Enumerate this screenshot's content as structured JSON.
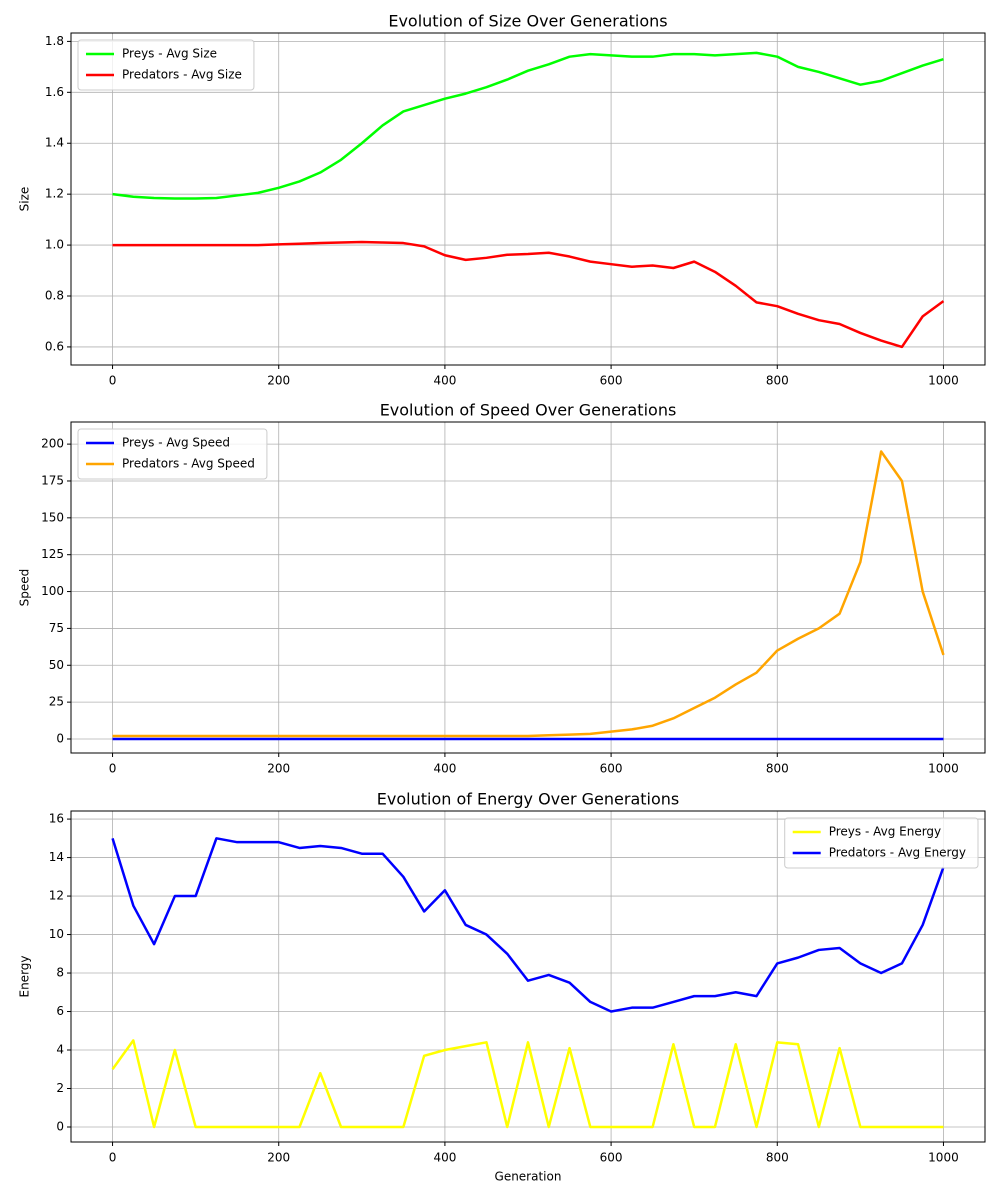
{
  "chart_data": [
    {
      "type": "line",
      "title": "Evolution of Size Over Generations",
      "ylabel": "Size",
      "x": [
        0,
        25,
        50,
        75,
        100,
        125,
        150,
        175,
        200,
        225,
        250,
        275,
        300,
        325,
        350,
        375,
        400,
        425,
        450,
        475,
        500,
        525,
        550,
        575,
        600,
        625,
        650,
        675,
        700,
        725,
        750,
        775,
        800,
        825,
        850,
        875,
        900,
        925,
        950,
        975,
        1000
      ],
      "series": [
        {
          "name": "Preys - Avg Size",
          "color": "#00ff00",
          "values": [
            1.2,
            1.19,
            1.185,
            1.183,
            1.183,
            1.185,
            1.195,
            1.205,
            1.225,
            1.25,
            1.285,
            1.335,
            1.4,
            1.47,
            1.525,
            1.55,
            1.575,
            1.595,
            1.62,
            1.65,
            1.685,
            1.71,
            1.74,
            1.75,
            1.745,
            1.74,
            1.74,
            1.75,
            1.75,
            1.745,
            1.75,
            1.755,
            1.74,
            1.7,
            1.68,
            1.655,
            1.63,
            1.645,
            1.675,
            1.705,
            1.73
          ]
        },
        {
          "name": "Predators - Avg Size",
          "color": "#ff0000",
          "values": [
            1.0,
            1.0,
            1.0,
            1.0,
            1.0,
            1.0,
            1.0,
            1.0,
            1.003,
            1.005,
            1.008,
            1.01,
            1.012,
            1.01,
            1.008,
            0.995,
            0.96,
            0.942,
            0.95,
            0.962,
            0.965,
            0.97,
            0.955,
            0.935,
            0.925,
            0.915,
            0.92,
            0.91,
            0.935,
            0.895,
            0.84,
            0.775,
            0.76,
            0.73,
            0.705,
            0.69,
            0.655,
            0.625,
            0.6,
            0.72,
            0.78
          ]
        }
      ],
      "xlim": [
        -50,
        1050
      ],
      "xticks": [
        0,
        200,
        400,
        600,
        800,
        1000
      ],
      "ylim": [
        0.529,
        1.833
      ],
      "yticks": [
        0.6,
        0.8,
        {
          "value": 1.0,
          "label": "1.0"
        },
        1.2,
        1.4,
        1.6,
        1.8
      ],
      "grid": true,
      "legend": "upper left"
    },
    {
      "type": "line",
      "title": "Evolution of Speed Over Generations",
      "ylabel": "Speed",
      "x": [
        0,
        25,
        50,
        75,
        100,
        125,
        150,
        175,
        200,
        225,
        250,
        275,
        300,
        325,
        350,
        375,
        400,
        425,
        450,
        475,
        500,
        525,
        550,
        575,
        600,
        625,
        650,
        675,
        700,
        725,
        750,
        775,
        800,
        825,
        850,
        875,
        900,
        925,
        950,
        975,
        1000
      ],
      "series": [
        {
          "name": "Preys - Avg Speed",
          "color": "#0000ff",
          "values": [
            0,
            0,
            0,
            0,
            0,
            0,
            0,
            0,
            0,
            0,
            0,
            0,
            0,
            0,
            0,
            0,
            0,
            0,
            0,
            0,
            0,
            0,
            0,
            0,
            0,
            0,
            0,
            0,
            0,
            0,
            0,
            0,
            0,
            0,
            0,
            0,
            0,
            0,
            0,
            0,
            0
          ]
        },
        {
          "name": "Predators - Avg Speed",
          "color": "#ffa500",
          "values": [
            2,
            2,
            2,
            2,
            2,
            2,
            2,
            2,
            2,
            2,
            2,
            2,
            2,
            2,
            2,
            2,
            2,
            2,
            2,
            2,
            2,
            2.5,
            3,
            3.5,
            5,
            6.5,
            9,
            14,
            21,
            28,
            37,
            45,
            60,
            68,
            75,
            85,
            120,
            195,
            175,
            100,
            57
          ]
        }
      ],
      "xlim": [
        -50,
        1050
      ],
      "xticks": [
        0,
        200,
        400,
        600,
        800,
        1000
      ],
      "ylim": [
        -9.5,
        215
      ],
      "yticks": [
        0,
        25,
        50,
        75,
        100,
        125,
        150,
        175,
        200
      ],
      "grid": true,
      "legend": "upper left"
    },
    {
      "type": "line",
      "title": "Evolution of Energy Over Generations",
      "ylabel": "Energy",
      "xlabel": "Generation",
      "x": [
        0,
        25,
        50,
        75,
        100,
        125,
        150,
        175,
        200,
        225,
        250,
        275,
        300,
        325,
        350,
        375,
        400,
        425,
        450,
        475,
        500,
        525,
        550,
        575,
        600,
        625,
        650,
        675,
        700,
        725,
        750,
        775,
        800,
        825,
        850,
        875,
        900,
        925,
        950,
        975,
        1000
      ],
      "series": [
        {
          "name": "Preys - Avg Energy",
          "color": "#ffff00",
          "values": [
            3,
            4.5,
            0,
            4,
            0,
            0,
            0,
            0,
            0,
            0,
            2.8,
            0,
            0,
            0,
            0,
            3.7,
            4,
            4.2,
            4.4,
            0,
            4.4,
            0,
            4.1,
            0,
            0,
            0,
            0,
            4.3,
            0,
            0,
            4.3,
            0,
            4.4,
            4.3,
            0,
            4.1,
            0,
            0,
            0,
            0,
            0
          ]
        },
        {
          "name": "Predators - Avg Energy",
          "color": "#0000ff",
          "values": [
            15,
            11.5,
            9.5,
            12,
            12,
            15,
            14.8,
            14.8,
            14.8,
            14.5,
            14.6,
            14.5,
            14.2,
            14.2,
            13,
            11.2,
            12.3,
            10.5,
            10,
            9,
            7.6,
            7.9,
            7.5,
            6.5,
            6,
            6.2,
            6.2,
            6.5,
            6.8,
            6.8,
            7,
            6.8,
            8.5,
            8.8,
            9.2,
            9.3,
            8.5,
            8,
            8.5,
            10.5,
            13.5
          ]
        }
      ],
      "xlim": [
        -50,
        1050
      ],
      "xticks": [
        0,
        200,
        400,
        600,
        800,
        1000
      ],
      "ylim": [
        -0.78,
        16.42
      ],
      "yticks": [
        0,
        2,
        4,
        6,
        8,
        10,
        12,
        14,
        16
      ],
      "grid": true,
      "legend": "upper right"
    }
  ]
}
